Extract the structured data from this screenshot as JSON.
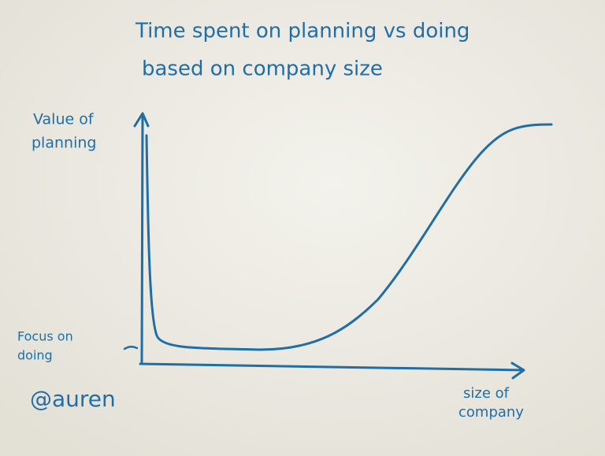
{
  "title": {
    "lines": [
      "Time spent on planning vs doing",
      "based on company size"
    ]
  },
  "y_axis": {
    "label": [
      "Value of",
      "planning"
    ],
    "low_label": [
      "Focus on",
      "doing"
    ]
  },
  "x_axis": {
    "label": [
      "size of",
      "company"
    ]
  },
  "signature": "@auren"
}
